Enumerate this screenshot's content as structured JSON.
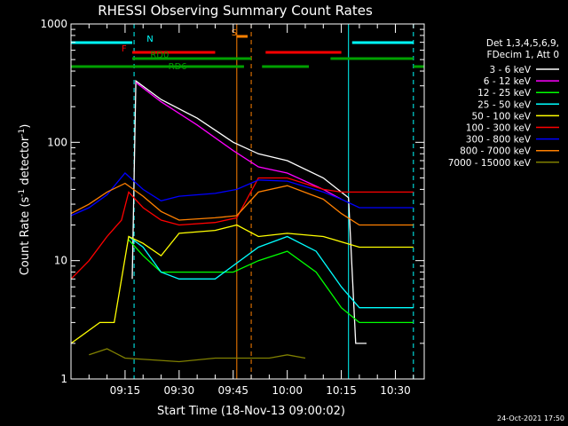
{
  "chart_data": {
    "type": "line",
    "title": "RHESSI Observing Summary Count Rates",
    "xlabel": "Start Time (18-Nov-13 09:00:02)",
    "ylabel": "Count Rate (s⁻¹ detector⁻¹)",
    "ylabel_main": "Count Rate (s",
    "ylabel_sup1": "-1",
    "ylabel_mid": " detector",
    "ylabel_sup2": "-1",
    "ylabel_end": ")",
    "yscale": "log",
    "xlim": [
      "09:00",
      "10:38"
    ],
    "ylim": [
      1,
      1000
    ],
    "x_ticks": [
      "09:15",
      "09:30",
      "09:45",
      "10:00",
      "10:15",
      "10:30"
    ],
    "y_ticks": [
      "1",
      "10",
      "100",
      "1000"
    ],
    "legend_header": [
      "Det 1,3,4,5,6,9,",
      "FDecim 1, Att 0"
    ],
    "footer": "24-Oct-2021 17:50",
    "flags": [
      {
        "label": "N",
        "color": "#00ffff",
        "intervals": [
          [
            "09:00",
            "09:17"
          ],
          [
            "10:18",
            "10:35"
          ]
        ]
      },
      {
        "label": "F",
        "color": "#ff0000",
        "intervals": [
          [
            "09:17",
            "09:40"
          ],
          [
            "09:54",
            "10:15"
          ]
        ]
      },
      {
        "label": "RD0",
        "color": "#00a000",
        "intervals": [
          [
            "09:17",
            "09:50"
          ],
          [
            "10:12",
            "10:35"
          ]
        ]
      },
      {
        "label": "RD6",
        "color": "#00a000",
        "intervals": [
          [
            "09:00",
            "09:48"
          ],
          [
            "09:53",
            "10:06"
          ],
          [
            "10:35",
            "10:38"
          ]
        ]
      },
      {
        "label": "S",
        "color": "#ff8000",
        "intervals": [
          [
            "09:46",
            "09:49"
          ]
        ]
      }
    ],
    "vlines": [
      {
        "x": "09:17:30",
        "color": "#00ffff",
        "style": "dashed"
      },
      {
        "x": "09:46",
        "color": "#ff8000",
        "style": "solid"
      },
      {
        "x": "09:50",
        "color": "#ff8000",
        "style": "dashed"
      },
      {
        "x": "10:17",
        "color": "#00ffff",
        "style": "solid"
      },
      {
        "x": "10:35",
        "color": "#00ffff",
        "style": "dashed"
      }
    ],
    "series": [
      {
        "name": "3 - 6 keV",
        "color": "#ffffff",
        "points": [
          [
            "09:17",
            7
          ],
          [
            "09:18",
            330
          ],
          [
            "09:25",
            230
          ],
          [
            "09:35",
            160
          ],
          [
            "09:45",
            100
          ],
          [
            "09:52",
            80
          ],
          [
            "10:00",
            70
          ],
          [
            "10:10",
            50
          ],
          [
            "10:17",
            34
          ],
          [
            "10:19",
            2
          ],
          [
            "10:22",
            2
          ]
        ]
      },
      {
        "name": "6 - 12 keV",
        "color": "#ff00ff",
        "points": [
          [
            "09:18",
            320
          ],
          [
            "09:25",
            220
          ],
          [
            "09:35",
            140
          ],
          [
            "09:45",
            85
          ],
          [
            "09:52",
            62
          ],
          [
            "10:00",
            55
          ],
          [
            "10:10",
            40
          ],
          [
            "10:15",
            33
          ]
        ]
      },
      {
        "name": "12 - 25 keV",
        "color": "#00ff00",
        "points": [
          [
            "09:16",
            15
          ],
          [
            "09:20",
            11
          ],
          [
            "09:25",
            8
          ],
          [
            "09:35",
            8
          ],
          [
            "09:45",
            8
          ],
          [
            "09:52",
            10
          ],
          [
            "10:00",
            12
          ],
          [
            "10:08",
            8
          ],
          [
            "10:15",
            4
          ],
          [
            "10:20",
            3
          ],
          [
            "10:25",
            3
          ],
          [
            "10:30",
            3
          ],
          [
            "10:35",
            3
          ]
        ]
      },
      {
        "name": "25 - 50 keV",
        "color": "#00ffff",
        "points": [
          [
            "09:16",
            16
          ],
          [
            "09:20",
            13
          ],
          [
            "09:25",
            8
          ],
          [
            "09:30",
            7
          ],
          [
            "09:40",
            7
          ],
          [
            "09:52",
            13
          ],
          [
            "10:00",
            16
          ],
          [
            "10:08",
            12
          ],
          [
            "10:15",
            6
          ],
          [
            "10:20",
            4
          ],
          [
            "10:25",
            4
          ],
          [
            "10:30",
            4
          ],
          [
            "10:35",
            4
          ]
        ]
      },
      {
        "name": "50 - 100 keV",
        "color": "#ffff00",
        "points": [
          [
            "09:00",
            2
          ],
          [
            "09:08",
            3
          ],
          [
            "09:12",
            3
          ],
          [
            "09:16",
            16
          ],
          [
            "09:20",
            14
          ],
          [
            "09:25",
            11
          ],
          [
            "09:30",
            17
          ],
          [
            "09:40",
            18
          ],
          [
            "09:46",
            20
          ],
          [
            "09:52",
            16
          ],
          [
            "10:00",
            17
          ],
          [
            "10:10",
            16
          ],
          [
            "10:20",
            13
          ],
          [
            "10:30",
            13
          ],
          [
            "10:35",
            13
          ]
        ]
      },
      {
        "name": "100 - 300 keV",
        "color": "#ff0000",
        "points": [
          [
            "09:00",
            7
          ],
          [
            "09:05",
            10
          ],
          [
            "09:10",
            16
          ],
          [
            "09:14",
            22
          ],
          [
            "09:16",
            38
          ],
          [
            "09:20",
            28
          ],
          [
            "09:25",
            22
          ],
          [
            "09:30",
            20
          ],
          [
            "09:40",
            21
          ],
          [
            "09:46",
            23
          ],
          [
            "09:52",
            50
          ],
          [
            "10:00",
            50
          ],
          [
            "10:10",
            40
          ],
          [
            "10:15",
            38
          ],
          [
            "10:20",
            38
          ],
          [
            "10:30",
            38
          ],
          [
            "10:35",
            38
          ]
        ]
      },
      {
        "name": "300 - 800 keV",
        "color": "#0000ff",
        "points": [
          [
            "09:00",
            24
          ],
          [
            "09:05",
            28
          ],
          [
            "09:10",
            36
          ],
          [
            "09:15",
            55
          ],
          [
            "09:20",
            40
          ],
          [
            "09:25",
            32
          ],
          [
            "09:30",
            35
          ],
          [
            "09:40",
            37
          ],
          [
            "09:46",
            40
          ],
          [
            "09:52",
            48
          ],
          [
            "10:00",
            47
          ],
          [
            "10:10",
            38
          ],
          [
            "10:15",
            33
          ],
          [
            "10:20",
            28
          ],
          [
            "10:30",
            28
          ],
          [
            "10:35",
            28
          ]
        ]
      },
      {
        "name": "800 - 7000 keV",
        "color": "#ff8000",
        "points": [
          [
            "09:00",
            25
          ],
          [
            "09:05",
            30
          ],
          [
            "09:10",
            38
          ],
          [
            "09:15",
            45
          ],
          [
            "09:20",
            35
          ],
          [
            "09:25",
            26
          ],
          [
            "09:30",
            22
          ],
          [
            "09:40",
            23
          ],
          [
            "09:46",
            24
          ],
          [
            "09:52",
            38
          ],
          [
            "10:00",
            43
          ],
          [
            "10:10",
            33
          ],
          [
            "10:15",
            25
          ],
          [
            "10:20",
            20
          ],
          [
            "10:30",
            20
          ],
          [
            "10:35",
            20
          ]
        ]
      },
      {
        "name": "7000 - 15000 keV",
        "color": "#808000",
        "points": [
          [
            "09:05",
            1.6
          ],
          [
            "09:10",
            1.8
          ],
          [
            "09:15",
            1.5
          ],
          [
            "09:30",
            1.4
          ],
          [
            "09:40",
            1.5
          ],
          [
            "09:55",
            1.5
          ],
          [
            "10:00",
            1.6
          ],
          [
            "10:05",
            1.5
          ]
        ]
      }
    ]
  }
}
